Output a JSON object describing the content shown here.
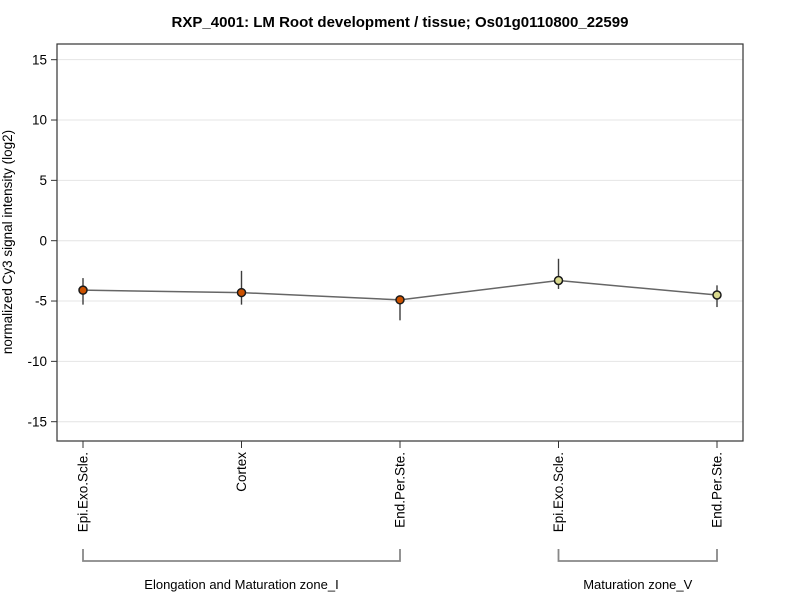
{
  "chart_data": {
    "type": "line",
    "title": "RXP_4001: LM Root development / tissue; Os01g0110800_22599",
    "ylabel": "normalized Cy3 signal intensity (log2)",
    "xlabel": "",
    "ylim": [
      -16.6,
      16.3
    ],
    "yticks": [
      15,
      10,
      5,
      0,
      -5,
      -10,
      -15
    ],
    "grid": true,
    "legend_position": "none",
    "categories": [
      "Epi.Exo.Scle.",
      "Cortex",
      "End.Per.Ste.",
      "Epi.Exo.Scle.",
      "End.Per.Ste."
    ],
    "series": [
      {
        "name": "Os01g0110800_22599 signal intensity",
        "values": [
          -4.1,
          -4.3,
          -4.9,
          -3.3,
          -4.5
        ],
        "err_high": [
          -3.1,
          -2.5,
          -4.6,
          -1.5,
          -3.7
        ],
        "err_low": [
          -5.3,
          -5.3,
          -6.6,
          -4.0,
          -5.5
        ],
        "marker_fills": [
          "#cc5200",
          "#cc5200",
          "#cc5200",
          "#d9d98e",
          "#d9d98e"
        ]
      }
    ],
    "groups": [
      {
        "label": "Elongation and Maturation zone_I",
        "start": 0,
        "end": 2
      },
      {
        "label": "Maturation zone_V",
        "start": 3,
        "end": 4
      }
    ]
  },
  "colors": {
    "background": "#ffffff",
    "grid": "#e4e4e4",
    "axis": "#333333",
    "series_line": "#666666",
    "error_bar": "#3d3d3d",
    "marker_stroke": "#1a1a1a",
    "bracket": "#888888",
    "text": "#000000"
  }
}
